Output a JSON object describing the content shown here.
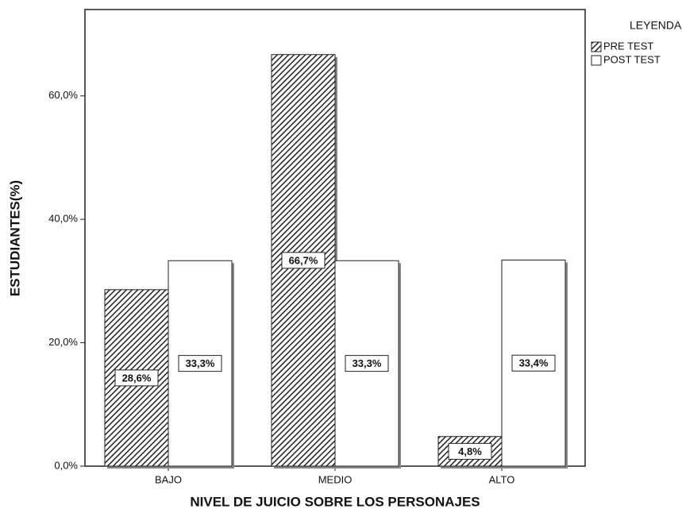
{
  "chart_data": {
    "type": "bar",
    "x_label": "NIVEL DE JUICIO SOBRE LOS PERSONAJES",
    "y_label": "ESTUDIANTES(%)",
    "legend_title": "LEYENDA",
    "legend": "top-right-outside",
    "categories": [
      "BAJO",
      "MEDIO",
      "ALTO"
    ],
    "series": [
      {
        "name": "PRE TEST",
        "color": "#222222",
        "pattern": "hatch",
        "values": [
          28.6,
          66.7,
          4.8
        ],
        "value_labels": [
          "28,6%",
          "66,7%",
          "4,8%"
        ]
      },
      {
        "name": "POST TEST",
        "color": "#ffffff",
        "values": [
          33.3,
          33.3,
          33.4
        ],
        "value_labels": [
          "33,3%",
          "33,3%",
          "33,4%"
        ]
      }
    ],
    "ylim": [
      0,
      74
    ],
    "yticks": [
      {
        "value": 0,
        "label": "0,0%"
      },
      {
        "value": 20,
        "label": "20,0%"
      },
      {
        "value": 40,
        "label": "40,0%"
      },
      {
        "value": 60,
        "label": "60,0%"
      }
    ]
  }
}
